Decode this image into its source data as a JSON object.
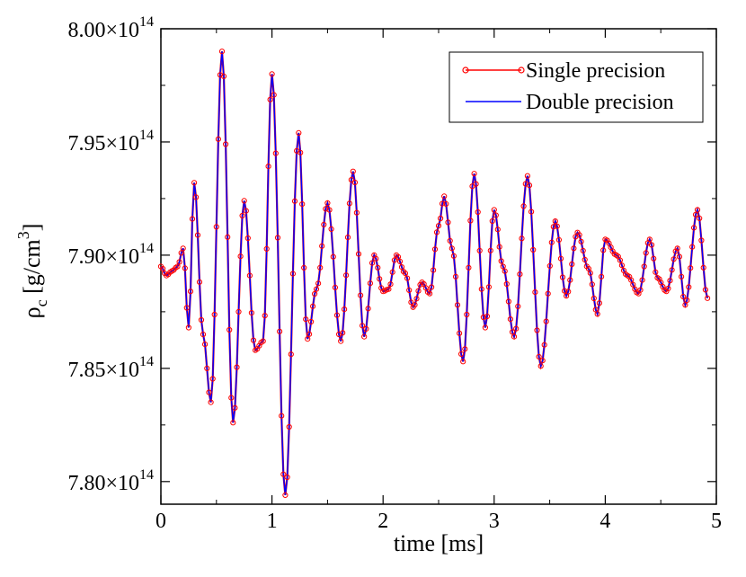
{
  "chart_data": {
    "type": "line",
    "title": "",
    "xlabel": "time [ms]",
    "ylabel": "ρ",
    "ylabel_subscript": "c",
    "ylabel_unit_open": " [g/cm",
    "ylabel_unit_power": "3",
    "ylabel_unit_close": "]",
    "xlim": [
      0,
      5
    ],
    "ylim": [
      779000000000000.0,
      800000000000000.0
    ],
    "x_ticks": [
      0,
      1,
      2,
      3,
      4,
      5
    ],
    "x_tick_labels": [
      "0",
      "1",
      "2",
      "3",
      "4",
      "5"
    ],
    "y_ticks": [
      780000000000000.0,
      785000000000000.0,
      790000000000000.0,
      795000000000000.0,
      800000000000000.0
    ],
    "y_tick_mantissas": [
      "7.80×10",
      "7.85×10",
      "7.90×10",
      "7.95×10",
      "8.00×10"
    ],
    "y_tick_exponent": "14",
    "legend_position": "top-right",
    "series": [
      {
        "name": "Single precision",
        "color": "#ff0000",
        "marker": "open-circle",
        "x": [
          0.0,
          0.05,
          0.1,
          0.15,
          0.2,
          0.25,
          0.3,
          0.38,
          0.45,
          0.55,
          0.65,
          0.75,
          0.85,
          0.92,
          1.0,
          1.12,
          1.24,
          1.32,
          1.4,
          1.5,
          1.62,
          1.73,
          1.83,
          1.92,
          2.0,
          2.05,
          2.12,
          2.2,
          2.27,
          2.35,
          2.42,
          2.5,
          2.55,
          2.62,
          2.72,
          2.82,
          2.92,
          3.0,
          3.08,
          3.18,
          3.3,
          3.42,
          3.55,
          3.65,
          3.75,
          3.85,
          3.93,
          4.0,
          4.1,
          4.2,
          4.3,
          4.4,
          4.47,
          4.55,
          4.65,
          4.72,
          4.83,
          4.92
        ],
        "y": [
          789500000000000.0,
          789100000000000.0,
          789300000000000.0,
          789500000000000.0,
          790300000000000.0,
          786800000000000.0,
          793200000000000.0,
          786500000000000.0,
          783500000000000.0,
          799000000000000.0,
          782600000000000.0,
          792400000000000.0,
          785800000000000.0,
          786200000000000.0,
          798000000000000.0,
          779400000000000.0,
          795400000000000.0,
          786300000000000.0,
          788500000000000.0,
          792300000000000.0,
          786200000000000.0,
          793700000000000.0,
          786400000000000.0,
          790000000000000.0,
          788400000000000.0,
          788500000000000.0,
          790000000000000.0,
          789200000000000.0,
          787700000000000.0,
          788800000000000.0,
          788300000000000.0,
          791300000000000.0,
          792600000000000.0,
          790300000000000.0,
          785300000000000.0,
          793600000000000.0,
          786800000000000.0,
          792000000000000.0,
          789500000000000.0,
          786400000000000.0,
          793500000000000.0,
          785100000000000.0,
          791500000000000.0,
          788200000000000.0,
          791000000000000.0,
          789400000000000.0,
          787400000000000.0,
          790700000000000.0,
          790000000000000.0,
          789100000000000.0,
          788300000000000.0,
          790700000000000.0,
          789000000000000.0,
          788400000000000.0,
          790300000000000.0,
          787800000000000.0,
          792000000000000.0,
          788100000000000.0
        ]
      },
      {
        "name": "Double precision",
        "color": "#0000ff",
        "marker": "none"
      }
    ]
  }
}
